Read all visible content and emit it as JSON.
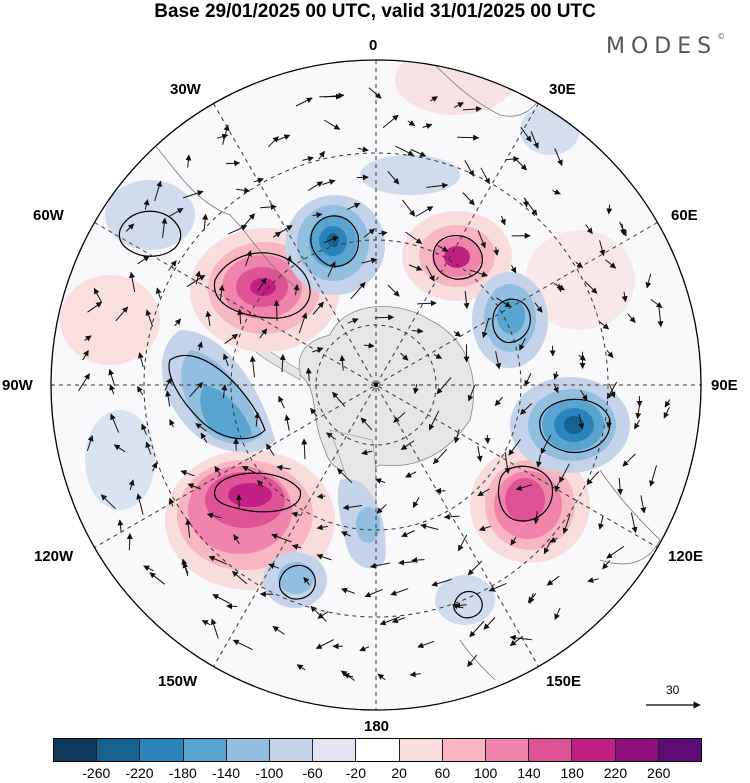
{
  "title": "Base 29/01/2025 00 UTC, valid 31/01/2025 00 UTC",
  "brand": "MODES",
  "brand_mark": "©",
  "longitude_labels": [
    "0",
    "30E",
    "60E",
    "90E",
    "120E",
    "150E",
    "180",
    "150W",
    "120W",
    "90W",
    "60W",
    "30W"
  ],
  "reference_vector": "30",
  "colorbar": {
    "colors": [
      "#0d3a5c",
      "#15618f",
      "#2a84ba",
      "#5aa4d0",
      "#92bfe0",
      "#c5d3ea",
      "#e4e3f1",
      "#ffffff",
      "#f9dcdc",
      "#f7b6c2",
      "#f084ac",
      "#e05296",
      "#c21f85",
      "#8d0f7c",
      "#5d0b73"
    ],
    "ticks": [
      "-260",
      "-220",
      "-180",
      "-140",
      "-100",
      "-60",
      "-20",
      "20",
      "60",
      "100",
      "140",
      "180",
      "220",
      "260"
    ]
  },
  "map": {
    "projection": "south-polar-stereographic",
    "positive_anomalies": [
      "60W-40W",
      "30E-60E",
      "120W-150W",
      "120E-135E"
    ],
    "negative_anomalies": [
      "0-20W",
      "60E-70E",
      "95W-105W",
      "90E-100E",
      "150W-170W",
      "175W-180"
    ]
  }
}
